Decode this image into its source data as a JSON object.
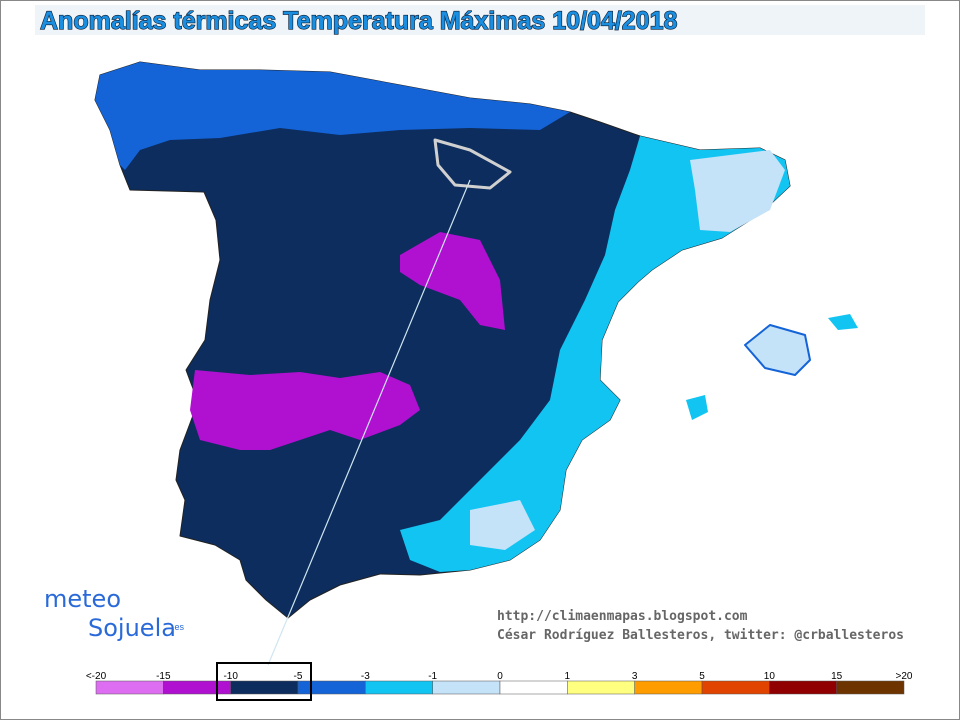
{
  "header": {
    "title": "Anomalías térmicas Temperatura Máximas 10/04/2018"
  },
  "legend": {
    "labels": [
      "<-20",
      "-15",
      "-10",
      "-5",
      "-3",
      "-1",
      "0",
      "1",
      "3",
      "5",
      "10",
      "15",
      ">20"
    ],
    "colors": [
      "#dd6ef2",
      "#b010d0",
      "#0c2d5e",
      "#1464d8",
      "#12c4f2",
      "#c4e2f8",
      "#ffffff",
      "#ffff80",
      "#ff9c00",
      "#e04400",
      "#900000",
      "#6e3400"
    ]
  },
  "credits": {
    "url": "http://climaenmapas.blogspot.com",
    "author": "César Rodríguez Ballesteros, twitter: @crballesteros"
  },
  "logo": {
    "top": "meteo",
    "bottom": "Sojuela",
    "suffix": ".es"
  }
}
